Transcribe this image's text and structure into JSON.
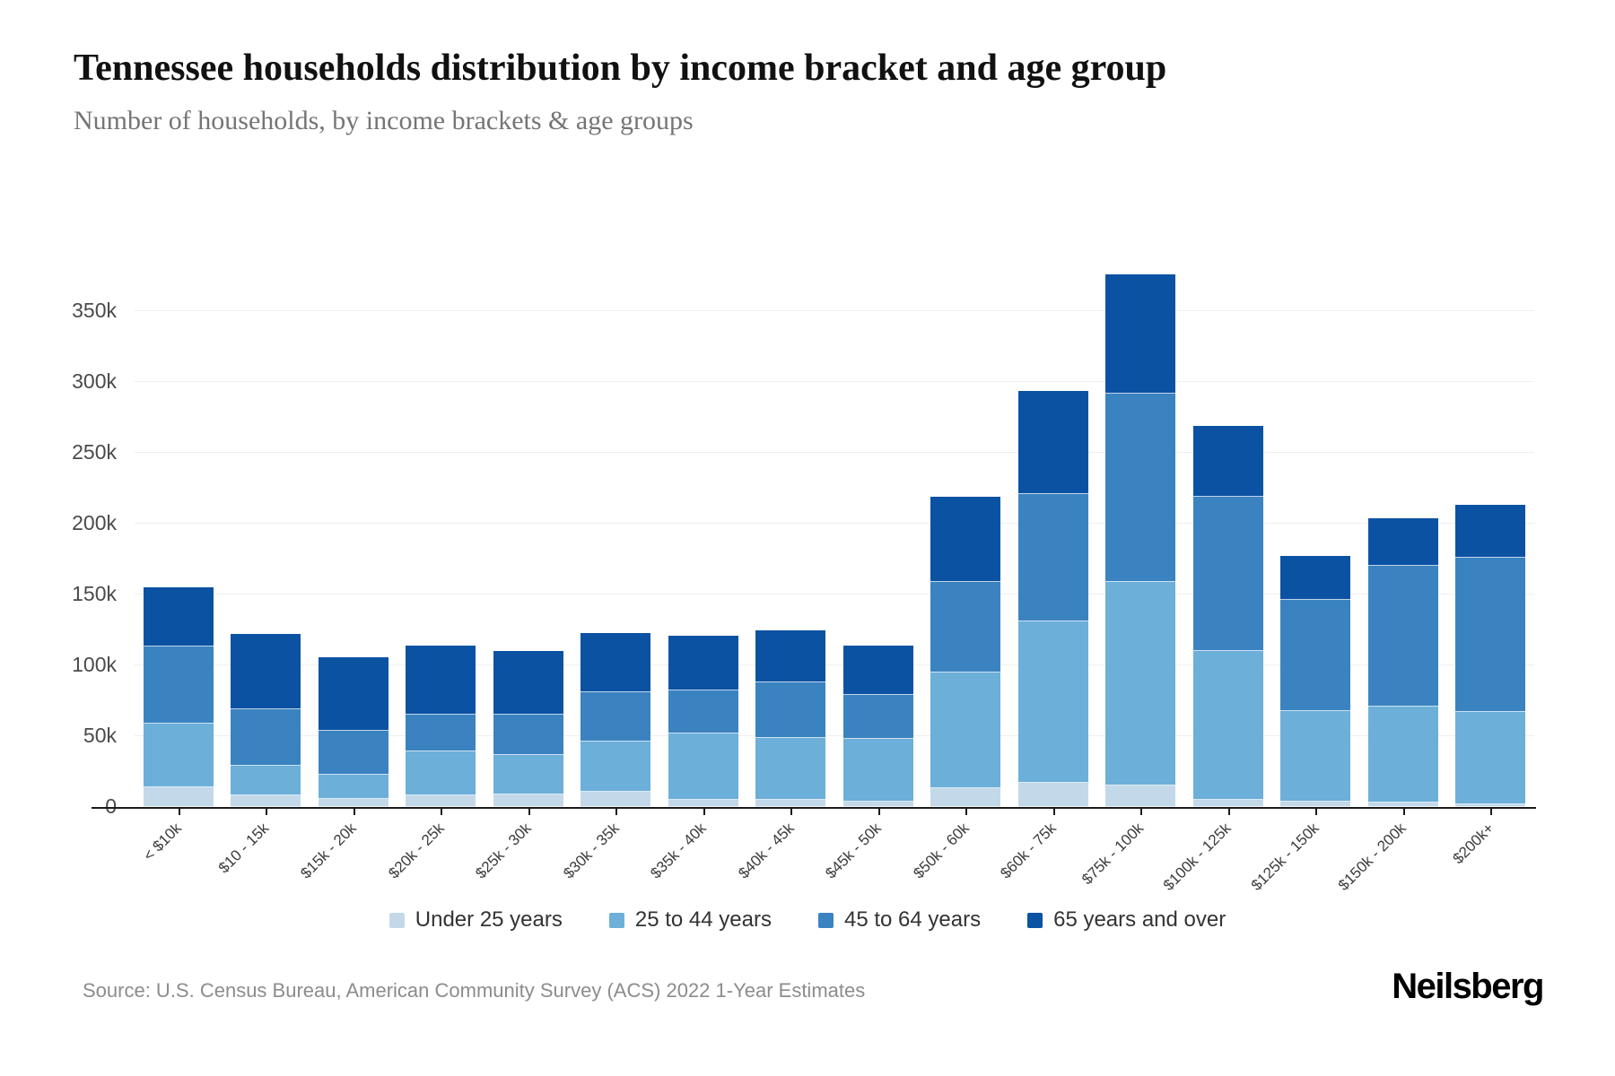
{
  "header": {
    "title": "Tennessee households distribution by income bracket and age group",
    "subtitle": "Number of households, by income brackets & age groups"
  },
  "chart_data": {
    "type": "bar",
    "stacked": true,
    "grid": true,
    "legend_position": "bottom",
    "unit_note": "values in thousands of households",
    "ylim_k": [
      0,
      400
    ],
    "y_ticks": [
      {
        "label": "0",
        "value_k": 0
      },
      {
        "label": "50k",
        "value_k": 50
      },
      {
        "label": "100k",
        "value_k": 100
      },
      {
        "label": "150k",
        "value_k": 150
      },
      {
        "label": "200k",
        "value_k": 200
      },
      {
        "label": "250k",
        "value_k": 250
      },
      {
        "label": "300k",
        "value_k": 300
      },
      {
        "label": "350k",
        "value_k": 350
      }
    ],
    "categories": [
      "< $10k",
      "$10 - 15k",
      "$15k - 20k",
      "$20k - 25k",
      "$25k - 30k",
      "$30k - 35k",
      "$35k - 40k",
      "$40k - 45k",
      "$45k - 50k",
      "$50k - 60k",
      "$60k - 75k",
      "$75k - 100k",
      "$100k - 125k",
      "$125k - 150k",
      "$150k - 200k",
      "$200k+"
    ],
    "series": [
      {
        "name": "Under 25 years",
        "color": "#c3d9ea",
        "values_k": [
          14,
          8,
          6,
          8,
          9,
          11,
          5,
          5,
          4,
          13,
          17,
          15,
          5,
          4,
          3,
          2
        ]
      },
      {
        "name": "25 to 44 years",
        "color": "#6cafd9",
        "values_k": [
          45,
          21,
          17,
          31,
          28,
          35,
          47,
          44,
          44,
          82,
          114,
          144,
          105,
          64,
          68,
          65
        ]
      },
      {
        "name": "45 to 64 years",
        "color": "#3a83c0",
        "values_k": [
          54,
          40,
          31,
          26,
          28,
          35,
          30,
          39,
          31,
          64,
          90,
          133,
          109,
          78,
          99,
          109
        ]
      },
      {
        "name": "65 years and over",
        "color": "#0b52a3",
        "values_k": [
          42,
          53,
          52,
          49,
          45,
          42,
          39,
          37,
          35,
          60,
          73,
          84,
          50,
          31,
          34,
          37
        ]
      }
    ]
  },
  "footer": {
    "source": "Source: U.S. Census Bureau, American Community Survey (ACS) 2022 1-Year Estimates",
    "logo": "Neilsberg"
  }
}
